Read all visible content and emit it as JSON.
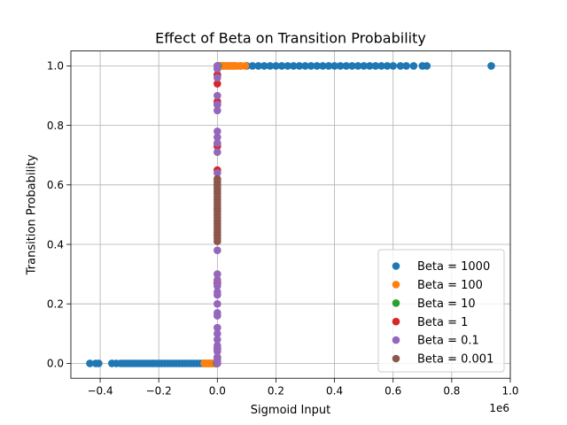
{
  "chart_data": {
    "type": "scatter",
    "title": "Effect of Beta on Transition Probability",
    "xlabel": "Sigmoid Input",
    "ylabel": "Transition Probability",
    "x_offset_label": "1e6",
    "xlim": [
      -0.5,
      1.0
    ],
    "ylim": [
      -0.05,
      1.05
    ],
    "x_ticks": [
      {
        "value": -0.4,
        "label": "−0.4"
      },
      {
        "value": -0.2,
        "label": "−0.2"
      },
      {
        "value": 0.0,
        "label": "0.0"
      },
      {
        "value": 0.2,
        "label": "0.2"
      },
      {
        "value": 0.4,
        "label": "0.4"
      },
      {
        "value": 0.6,
        "label": "0.6"
      },
      {
        "value": 0.8,
        "label": "0.8"
      },
      {
        "value": 1.0,
        "label": "1.0"
      }
    ],
    "y_ticks": [
      {
        "value": 0.0,
        "label": "0.0"
      },
      {
        "value": 0.2,
        "label": "0.2"
      },
      {
        "value": 0.4,
        "label": "0.4"
      },
      {
        "value": 0.6,
        "label": "0.6"
      },
      {
        "value": 0.8,
        "label": "0.8"
      },
      {
        "value": 1.0,
        "label": "1.0"
      }
    ],
    "grid": true,
    "legend_position": "lower-right",
    "series": [
      {
        "name": "Beta = 1000",
        "color": "#1f77b4",
        "x": [
          -0.435,
          -0.415,
          -0.405,
          -0.36,
          -0.345,
          -0.33,
          -0.32,
          -0.31,
          -0.3,
          -0.29,
          -0.28,
          -0.27,
          -0.26,
          -0.25,
          -0.24,
          -0.23,
          -0.22,
          -0.21,
          -0.2,
          -0.19,
          -0.18,
          -0.17,
          -0.16,
          -0.15,
          -0.14,
          -0.13,
          -0.12,
          -0.11,
          -0.1,
          -0.09,
          -0.08,
          -0.07,
          -0.06,
          -0.05,
          -0.04,
          -0.03,
          -0.02,
          -0.01,
          0.02,
          0.04,
          0.06,
          0.08,
          0.1,
          0.12,
          0.14,
          0.16,
          0.18,
          0.2,
          0.22,
          0.24,
          0.26,
          0.28,
          0.3,
          0.32,
          0.34,
          0.36,
          0.38,
          0.4,
          0.42,
          0.44,
          0.46,
          0.48,
          0.5,
          0.52,
          0.54,
          0.56,
          0.58,
          0.6,
          0.625,
          0.645,
          0.67,
          0.7,
          0.715,
          0.935
        ],
        "y": [
          0,
          0,
          0,
          0,
          0,
          0,
          0,
          0,
          0,
          0,
          0,
          0,
          0,
          0,
          0,
          0,
          0,
          0,
          0,
          0,
          0,
          0,
          0,
          0,
          0,
          0,
          0,
          0,
          0,
          0,
          0,
          0,
          0,
          0,
          0,
          0,
          0,
          0,
          1,
          1,
          1,
          1,
          1,
          1,
          1,
          1,
          1,
          1,
          1,
          1,
          1,
          1,
          1,
          1,
          1,
          1,
          1,
          1,
          1,
          1,
          1,
          1,
          1,
          1,
          1,
          1,
          1,
          1,
          1,
          1,
          1,
          1,
          1,
          1
        ]
      },
      {
        "name": "Beta = 100",
        "color": "#ff7f0e",
        "x": [
          -0.045,
          -0.04,
          -0.035,
          -0.03,
          -0.025,
          -0.02,
          -0.015,
          -0.01,
          -0.005,
          0.005,
          0.01,
          0.015,
          0.02,
          0.025,
          0.03,
          0.035,
          0.04,
          0.045,
          0.05,
          0.055,
          0.06,
          0.07,
          0.08,
          0.095
        ],
        "y": [
          0,
          0,
          0,
          0,
          0,
          0,
          0,
          0,
          0,
          1,
          1,
          1,
          1,
          1,
          1,
          1,
          1,
          1,
          1,
          1,
          1,
          1,
          1,
          1
        ]
      },
      {
        "name": "Beta = 10",
        "color": "#2ca02c",
        "x": [
          -0.003,
          -0.002,
          -0.001,
          0.0,
          0.0,
          0.0,
          0.001,
          0.002,
          0.003
        ],
        "y": [
          0,
          0,
          0,
          0.97,
          0.02,
          0.99,
          1,
          1,
          1
        ]
      },
      {
        "name": "Beta = 1",
        "color": "#d62728",
        "x": [
          0.0,
          0.0,
          0.0,
          0.0,
          0.0,
          0.0,
          0.0,
          0.0,
          0.0,
          0.0,
          0.0,
          0.0,
          0.0
        ],
        "y": [
          0.0,
          0.02,
          0.05,
          0.27,
          0.28,
          0.65,
          0.73,
          0.74,
          0.87,
          0.88,
          0.94,
          0.97,
          1.0
        ]
      },
      {
        "name": "Beta = 0.1",
        "color": "#9467bd",
        "x": [
          0.0,
          0.0,
          0.0,
          0.0,
          0.0,
          0.0,
          0.0,
          0.0,
          0.0,
          0.0,
          0.0,
          0.0,
          0.0,
          0.0,
          0.0,
          0.0,
          0.0,
          0.0,
          0.0,
          0.0,
          0.0,
          0.0,
          0.0,
          0.0,
          0.0,
          0.0,
          0.0,
          0.0,
          0.0,
          0.0,
          0.0,
          0.0
        ],
        "y": [
          0.0,
          0.01,
          0.02,
          0.04,
          0.05,
          0.06,
          0.08,
          0.1,
          0.12,
          0.16,
          0.17,
          0.2,
          0.23,
          0.24,
          0.26,
          0.28,
          0.3,
          0.38,
          0.43,
          0.52,
          0.6,
          0.64,
          0.71,
          0.74,
          0.76,
          0.78,
          0.85,
          0.87,
          0.9,
          0.96,
          0.99,
          1.0
        ]
      },
      {
        "name": "Beta = 0.001",
        "color": "#8c564b",
        "x": [
          0.0,
          0.0,
          0.0,
          0.0,
          0.0,
          0.0,
          0.0,
          0.0,
          0.0,
          0.0,
          0.0,
          0.0,
          0.0,
          0.0,
          0.0,
          0.0,
          0.0,
          0.0,
          0.0,
          0.0,
          0.0,
          0.0
        ],
        "y": [
          0.41,
          0.42,
          0.43,
          0.44,
          0.45,
          0.46,
          0.47,
          0.48,
          0.49,
          0.5,
          0.51,
          0.52,
          0.53,
          0.54,
          0.55,
          0.56,
          0.57,
          0.58,
          0.59,
          0.6,
          0.61,
          0.62
        ]
      }
    ]
  }
}
